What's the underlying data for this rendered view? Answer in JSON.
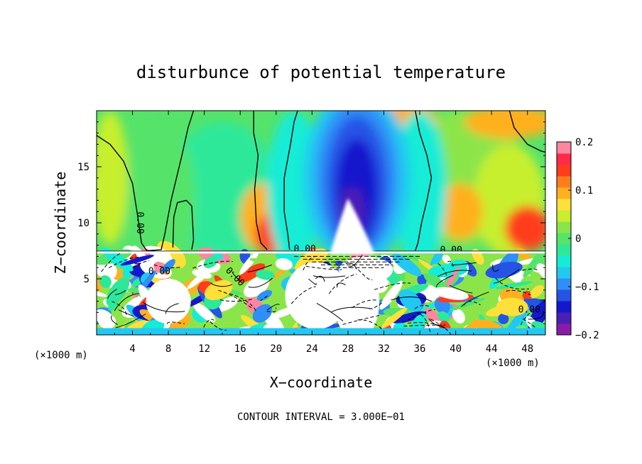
{
  "chart_data": {
    "type": "heatmap",
    "title": "disturbunce of potential temperature",
    "xlabel": "X−coordinate",
    "ylabel": "Z−coordinate",
    "x_unit_left": "(×1000 m)",
    "x_unit_right": "(×1000 m)",
    "x_ticks": [
      4,
      8,
      12,
      16,
      20,
      24,
      28,
      32,
      36,
      40,
      44,
      48
    ],
    "y_ticks": [
      5,
      10,
      15
    ],
    "xlim": [
      0,
      50
    ],
    "ylim": [
      0,
      20
    ],
    "contour_interval_text": "CONTOUR INTERVAL = 3.000E−01",
    "contour_labels": [
      {
        "text": "0.00",
        "x": 4.5,
        "z": 10.0,
        "rotate": 90
      },
      {
        "text": "0.00",
        "x": 7.0,
        "z": 5.4
      },
      {
        "text": "0.00",
        "x": 15.2,
        "z": 5.0,
        "rotate": 45
      },
      {
        "text": "0.00",
        "x": 23.2,
        "z": 7.4
      },
      {
        "text": "0.00",
        "x": 39.5,
        "z": 7.3
      },
      {
        "text": "0.00",
        "x": 48.2,
        "z": 2.0
      }
    ],
    "colorbar": {
      "range": [
        -0.2,
        0.2
      ],
      "tick_labels": [
        "0.2",
        "0.1",
        "0",
        "−0.1",
        "−0.2"
      ],
      "tick_values": [
        0.2,
        0.1,
        0,
        -0.1,
        -0.2
      ],
      "colors": [
        "#8c1aa8",
        "#4b1fb5",
        "#1418cc",
        "#2553e6",
        "#2f8ef7",
        "#22c7f2",
        "#15ecd6",
        "#2ee89a",
        "#55e36a",
        "#8be54a",
        "#c7ef2f",
        "#fde03a",
        "#ffb01f",
        "#ff7d1f",
        "#ff3c1c",
        "#ff2a4a",
        "#ff86a0"
      ]
    }
  }
}
